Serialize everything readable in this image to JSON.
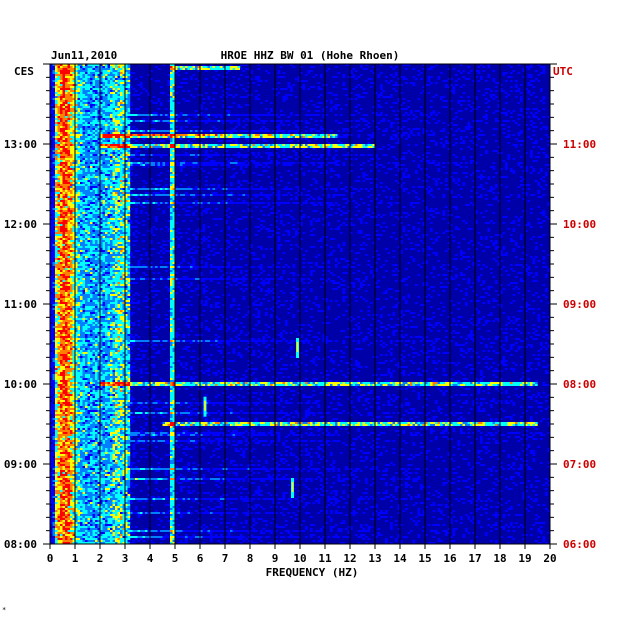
{
  "chart_data": {
    "type": "heatmap",
    "title": {
      "date": "Jun11,2010",
      "station": "HROE HHZ BW 01 (Hohe Rhoen)"
    },
    "xlabel": "FREQUENCY (HZ)",
    "xlim": [
      0,
      20
    ],
    "x_ticks": [
      "0",
      "1",
      "2",
      "3",
      "4",
      "5",
      "6",
      "7",
      "8",
      "9",
      "10",
      "11",
      "12",
      "13",
      "14",
      "15",
      "16",
      "17",
      "18",
      "19",
      "20"
    ],
    "left_axis_label": "CES",
    "right_axis_label": "UTC",
    "y_ticks_left": [
      "08:00",
      "09:00",
      "10:00",
      "11:00",
      "12:00",
      "13:00"
    ],
    "y_ticks_right": [
      "06:00",
      "07:00",
      "08:00",
      "09:00",
      "10:00",
      "11:00"
    ],
    "ylim_hours_local": [
      8.0,
      14.0
    ],
    "colors": {
      "background": "#0000a8",
      "grid": "#000000",
      "right_axis": "#cc0000",
      "scale": [
        "#000090",
        "#0000ff",
        "#0080ff",
        "#00ffff",
        "#ffff00",
        "#ff8000",
        "#ff0000"
      ]
    },
    "features": {
      "low_frequency_band_hz": [
        0.2,
        3.2
      ],
      "peak_band_hz": [
        0.3,
        0.9
      ],
      "spectral_line_hz": 4.9,
      "transient_events": [
        {
          "freq_hz": 9.9,
          "time_local": "10:27"
        },
        {
          "freq_hz": 9.7,
          "time_local": "08:42"
        },
        {
          "freq_hz": 6.2,
          "time_local": "09:43"
        }
      ],
      "strong_bursts": [
        {
          "time_local": "13:06",
          "freq_range_hz": [
            2.0,
            11.5
          ]
        },
        {
          "time_local": "12:58",
          "freq_range_hz": [
            2.0,
            13.0
          ]
        },
        {
          "time_local": "10:00",
          "freq_range_hz": [
            2.0,
            19.5
          ]
        },
        {
          "time_local": "09:30",
          "freq_range_hz": [
            4.5,
            19.5
          ]
        },
        {
          "time_local": "13:57",
          "freq_range_hz": [
            4.8,
            7.6
          ]
        }
      ]
    }
  },
  "footnote": "*"
}
